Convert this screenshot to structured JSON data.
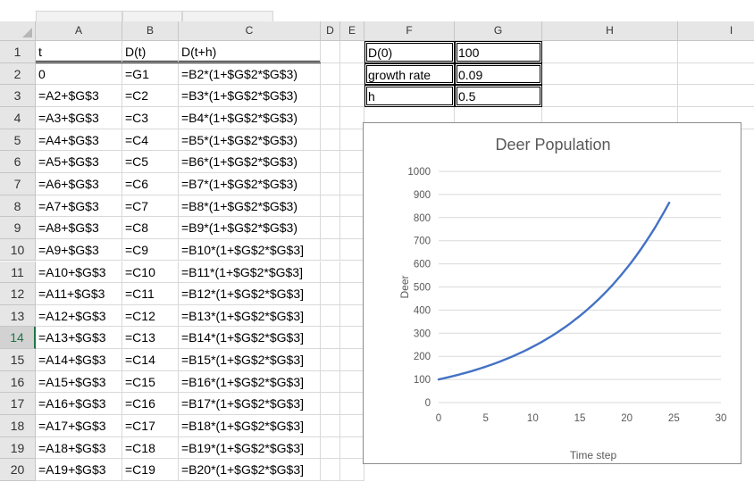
{
  "column_headers": [
    "A",
    "B",
    "C",
    "D",
    "E",
    "F",
    "G",
    "H",
    "I"
  ],
  "row_numbers": [
    "1",
    "2",
    "3",
    "4",
    "5",
    "6",
    "7",
    "8",
    "9",
    "10",
    "11",
    "12",
    "13",
    "14",
    "15",
    "16",
    "17",
    "18",
    "19",
    "20"
  ],
  "selected_row": "14",
  "col_a": [
    "t",
    "0",
    "=A2+$G$3",
    "=A3+$G$3",
    "=A4+$G$3",
    "=A5+$G$3",
    "=A6+$G$3",
    "=A7+$G$3",
    "=A8+$G$3",
    "=A9+$G$3",
    "=A10+$G$3",
    "=A11+$G$3",
    "=A12+$G$3",
    "=A13+$G$3",
    "=A14+$G$3",
    "=A15+$G$3",
    "=A16+$G$3",
    "=A17+$G$3",
    "=A18+$G$3",
    "=A19+$G$3"
  ],
  "col_b": [
    "D(t)",
    "=G1",
    "=C2",
    "=C3",
    "=C4",
    "=C5",
    "=C6",
    "=C7",
    "=C8",
    "=C9",
    "=C10",
    "=C11",
    "=C12",
    "=C13",
    "=C14",
    "=C15",
    "=C16",
    "=C17",
    "=C18",
    "=C19"
  ],
  "col_c": [
    "D(t+h)",
    "=B2*(1+$G$2*$G$3)",
    "=B3*(1+$G$2*$G$3)",
    "=B4*(1+$G$2*$G$3)",
    "=B5*(1+$G$2*$G$3)",
    "=B6*(1+$G$2*$G$3)",
    "=B7*(1+$G$2*$G$3)",
    "=B8*(1+$G$2*$G$3)",
    "=B9*(1+$G$2*$G$3)",
    "=B10*(1+$G$2*$G$3]",
    "=B11*(1+$G$2*$G$3]",
    "=B12*(1+$G$2*$G$3]",
    "=B13*(1+$G$2*$G$3]",
    "=B14*(1+$G$2*$G$3]",
    "=B15*(1+$G$2*$G$3]",
    "=B16*(1+$G$2*$G$3]",
    "=B17*(1+$G$2*$G$3]",
    "=B18*(1+$G$2*$G$3]",
    "=B19*(1+$G$2*$G$3]",
    "=B20*(1+$G$2*$G$3]"
  ],
  "params": [
    {
      "label": "D(0)",
      "value": "100"
    },
    {
      "label": "growth rate",
      "value": "0.09"
    },
    {
      "label": "h",
      "value": "0.5"
    }
  ],
  "chart_data": {
    "type": "line",
    "title": "Deer Population",
    "xlabel": "Time step",
    "ylabel": "Deer",
    "xlim": [
      0,
      30
    ],
    "ylim": [
      0,
      1000
    ],
    "x_ticks": [
      "0",
      "5",
      "10",
      "15",
      "20",
      "25",
      "30"
    ],
    "y_ticks": [
      "0",
      "100",
      "200",
      "300",
      "400",
      "500",
      "600",
      "700",
      "800",
      "900",
      "1000"
    ],
    "grid": true,
    "series_color": "#4472c4",
    "x": [
      0,
      0.5,
      1,
      1.5,
      2,
      2.5,
      3,
      3.5,
      4,
      4.5,
      5,
      5.5,
      6,
      6.5,
      7,
      7.5,
      8,
      8.5,
      9,
      9.5,
      10,
      10.5,
      11,
      11.5,
      12,
      12.5,
      13,
      13.5,
      14,
      14.5,
      15,
      15.5,
      16,
      16.5,
      17,
      17.5,
      18,
      18.5,
      19,
      19.5,
      20,
      20.5,
      21,
      21.5,
      22,
      22.5,
      23,
      23.5,
      24,
      24.5
    ],
    "values": [
      100,
      104.5,
      109.2,
      114.1,
      119.3,
      124.6,
      130.2,
      136.1,
      142.2,
      148.6,
      155.3,
      162.3,
      169.6,
      177.2,
      185.2,
      193.5,
      202.3,
      211.4,
      220.9,
      230.8,
      241.2,
      252.1,
      263.4,
      275.3,
      287.7,
      300.6,
      314.1,
      328.3,
      343.0,
      358.5,
      374.6,
      391.5,
      409.1,
      427.5,
      446.7,
      466.8,
      487.8,
      509.8,
      532.7,
      556.7,
      581.8,
      607.9,
      635.3,
      663.9,
      693.7,
      725.0,
      757.6,
      791.7,
      827.3,
      864.5
    ]
  }
}
